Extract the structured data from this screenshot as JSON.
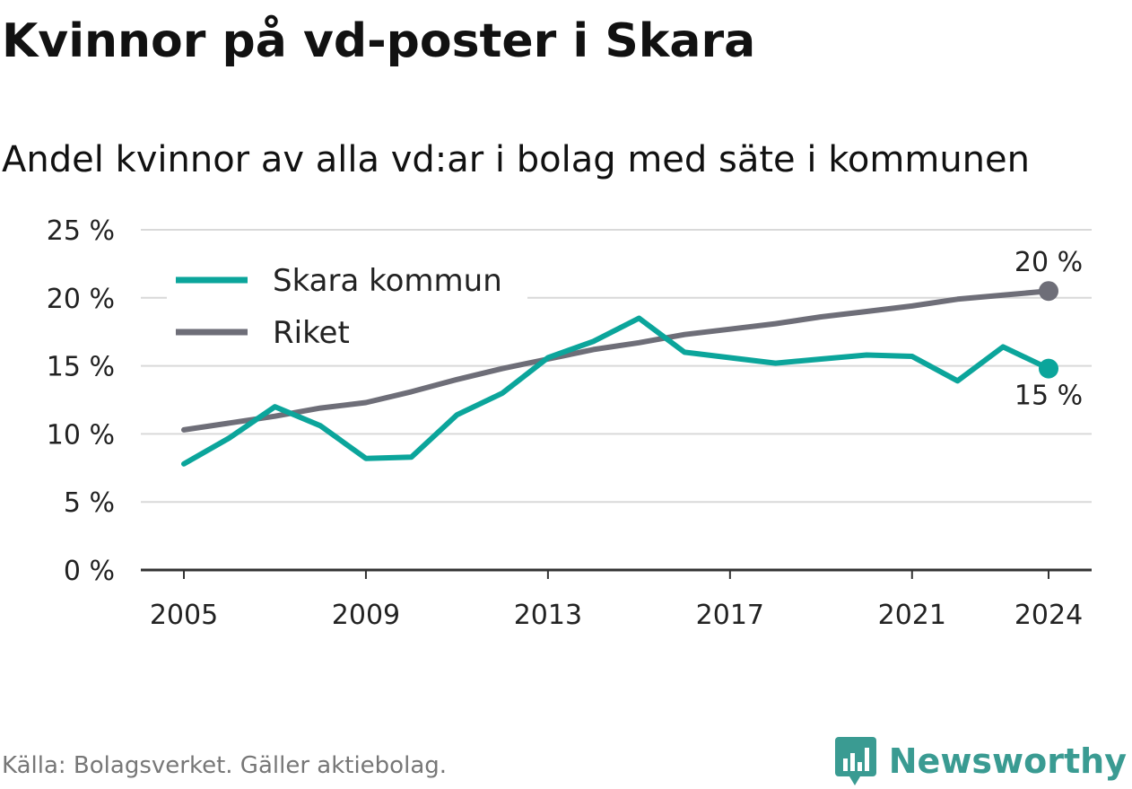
{
  "title": "Kvinnor på vd-poster i Skara",
  "subtitle": "Andel kvinnor av alla vd:ar i bolag med säte i kommunen",
  "source": "Källa: Bolagsverket. Gäller aktiebolag.",
  "brand": {
    "name": "Newsworthy",
    "icon": "bar-chart-logo-icon",
    "color": "#3a9b92"
  },
  "chart_data": {
    "type": "line",
    "x": [
      2005,
      2006,
      2007,
      2008,
      2009,
      2010,
      2011,
      2012,
      2013,
      2014,
      2015,
      2016,
      2017,
      2018,
      2019,
      2020,
      2021,
      2022,
      2023,
      2024
    ],
    "xticks": [
      "2005",
      "2009",
      "2013",
      "2017",
      "2021",
      "2024"
    ],
    "yticks": [
      "0 %",
      "5 %",
      "10 %",
      "15 %",
      "20 %",
      "25 %"
    ],
    "ylim": [
      0,
      25
    ],
    "grid": true,
    "legend_position": "top-left",
    "series": [
      {
        "name": "Skara kommun",
        "color": "#0ba59b",
        "values": [
          7.8,
          9.7,
          12.0,
          10.6,
          8.2,
          8.3,
          11.4,
          13.0,
          15.6,
          16.8,
          18.5,
          16.0,
          15.6,
          15.2,
          15.5,
          15.8,
          15.7,
          13.9,
          16.4,
          14.8
        ],
        "end_label": "15 %"
      },
      {
        "name": "Riket",
        "color": "#6e6e78",
        "values": [
          10.3,
          10.8,
          11.3,
          11.9,
          12.3,
          13.1,
          14.0,
          14.8,
          15.5,
          16.2,
          16.7,
          17.3,
          17.7,
          18.1,
          18.6,
          19.0,
          19.4,
          19.9,
          20.2,
          20.5
        ],
        "end_label": "20 %"
      }
    ]
  }
}
